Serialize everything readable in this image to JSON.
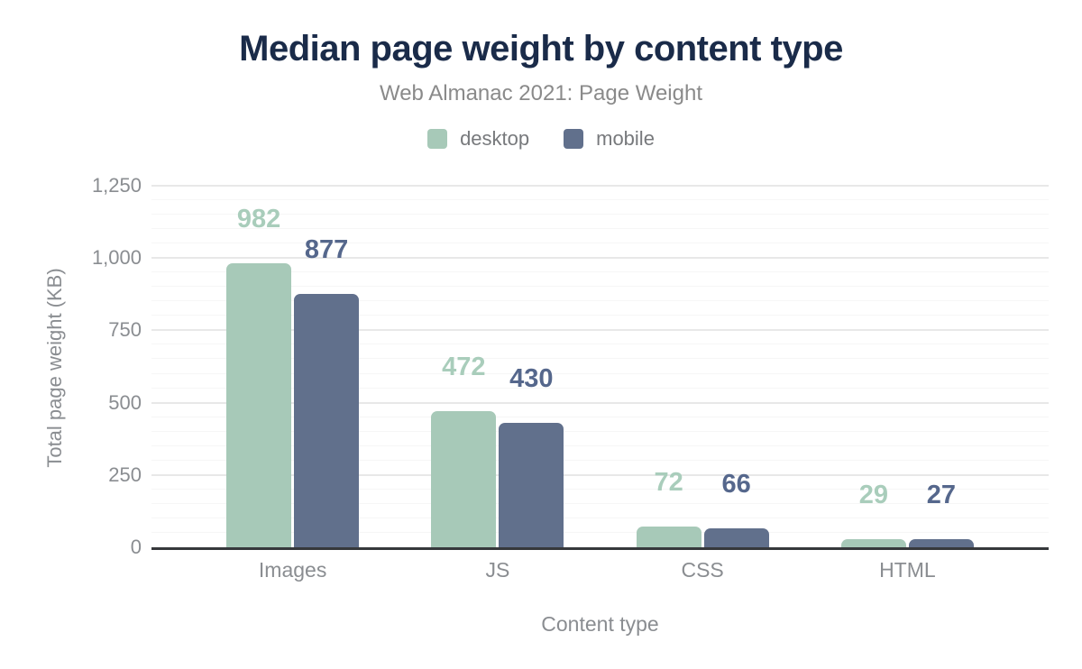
{
  "header": {
    "title": "Median page weight by content type",
    "subtitle": "Web Almanac 2021: Page Weight"
  },
  "colors": {
    "title_navy": "#1a2b49",
    "muted_text": "#8a8d91",
    "axis_line": "#36383b",
    "grid_major": "#e8e8e8",
    "grid_minor": "#f6f6f6",
    "desktop": "#a7c9b8",
    "desktop_label": "#a9cdbb",
    "mobile": "#61708c",
    "mobile_label": "#55678c"
  },
  "chart_data": {
    "type": "bar",
    "title": "Median page weight by content type",
    "subtitle": "Web Almanac 2021: Page Weight",
    "categories": [
      "Images",
      "JS",
      "CSS",
      "HTML"
    ],
    "series": [
      {
        "name": "desktop",
        "color": "#a7c9b8",
        "label_color": "#a9cdbb",
        "values": [
          982,
          472,
          72,
          29
        ]
      },
      {
        "name": "mobile",
        "color": "#61708c",
        "label_color": "#55678c",
        "values": [
          877,
          430,
          66,
          27
        ]
      }
    ],
    "xlabel": "Content type",
    "ylabel": "Total page weight (KB)",
    "ylim": [
      0,
      1250
    ],
    "yticks": [
      {
        "v": 0,
        "label": "0"
      },
      {
        "v": 250,
        "label": "250"
      },
      {
        "v": 500,
        "label": "500"
      },
      {
        "v": 750,
        "label": "750"
      },
      {
        "v": 1000,
        "label": "1,000"
      },
      {
        "v": 1250,
        "label": "1,250"
      }
    ],
    "minor_tick_interval": 50,
    "grid": true,
    "legend_position": "top",
    "data_labels": true
  }
}
